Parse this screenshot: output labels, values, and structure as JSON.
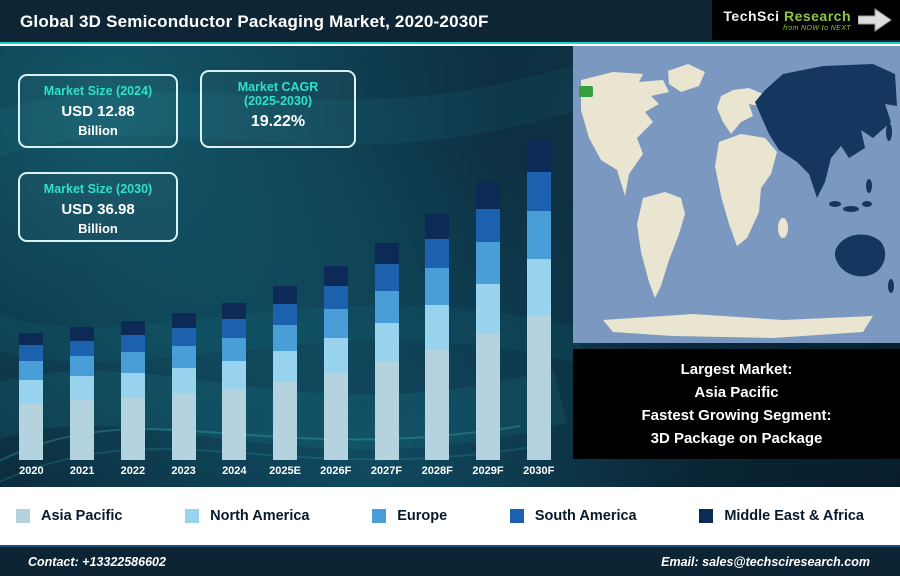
{
  "header": {
    "title": "Global 3D Semiconductor Packaging Market, 2020-2030F",
    "logo": {
      "brand_part1": "TechSci",
      "brand_part2": "Research",
      "tagline": "from NOW to NEXT"
    }
  },
  "stats": [
    {
      "title": "Market Size (2024)",
      "value": "USD 12.88",
      "unit": "Billion"
    },
    {
      "title": "Market CAGR",
      "subtitle": "(2025-2030)",
      "value": "19.22%"
    },
    {
      "title": "Market Size (2030)",
      "value": "USD 36.98",
      "unit": "Billion"
    }
  ],
  "chart_data": {
    "type": "bar",
    "stacked": true,
    "title": "Global 3D Semiconductor Packaging Market, 2020-2030F",
    "categories": [
      "2020",
      "2021",
      "2022",
      "2023",
      "2024",
      "2025E",
      "2026F",
      "2027F",
      "2028F",
      "2029F",
      "2030F"
    ],
    "series": [
      {
        "name": "Asia Pacific",
        "color": "#b5d3de",
        "values": [
          3.83,
          4.19,
          4.59,
          5.13,
          5.8,
          6.91,
          8.24,
          9.82,
          11.71,
          13.96,
          16.64
        ]
      },
      {
        "name": "North America",
        "color": "#99d4ef",
        "values": [
          1.53,
          1.67,
          1.84,
          2.05,
          2.32,
          2.76,
          3.3,
          3.93,
          4.69,
          5.59,
          6.66
        ]
      },
      {
        "name": "Europe",
        "color": "#4a9ed8",
        "values": [
          1.28,
          1.4,
          1.53,
          1.71,
          1.93,
          2.3,
          2.75,
          3.27,
          3.9,
          4.65,
          5.55
        ]
      },
      {
        "name": "South America",
        "color": "#1b61ad",
        "values": [
          1.02,
          1.12,
          1.22,
          1.37,
          1.55,
          1.84,
          2.2,
          2.62,
          3.12,
          3.72,
          4.44
        ]
      },
      {
        "name": "Middle East & Africa",
        "color": "#0c2a55",
        "values": [
          0.85,
          0.93,
          1.02,
          1.14,
          1.29,
          1.54,
          1.83,
          2.18,
          2.6,
          3.1,
          3.7
        ]
      }
    ],
    "totals_usd_billion": [
      8.51,
      9.31,
      10.2,
      11.4,
      12.88,
      15.35,
      18.32,
      21.82,
      26.02,
      31.02,
      36.99
    ],
    "legend_position": "bottom",
    "grid": false
  },
  "highlight_box": {
    "lines": [
      "Largest Market:",
      "Asia Pacific",
      "Fastest Growing Segment:",
      "3D Package on Package"
    ]
  },
  "footer": {
    "contact": "Contact: +13322586602",
    "email": "Email: sales@techsciresearch.com"
  },
  "colors": {
    "accent_teal": "#1fd0c4",
    "logo_green": "#8dc63f",
    "map_ocean": "#7b99c0",
    "map_land": "#eae5d0",
    "map_highlight": "#15375f"
  }
}
